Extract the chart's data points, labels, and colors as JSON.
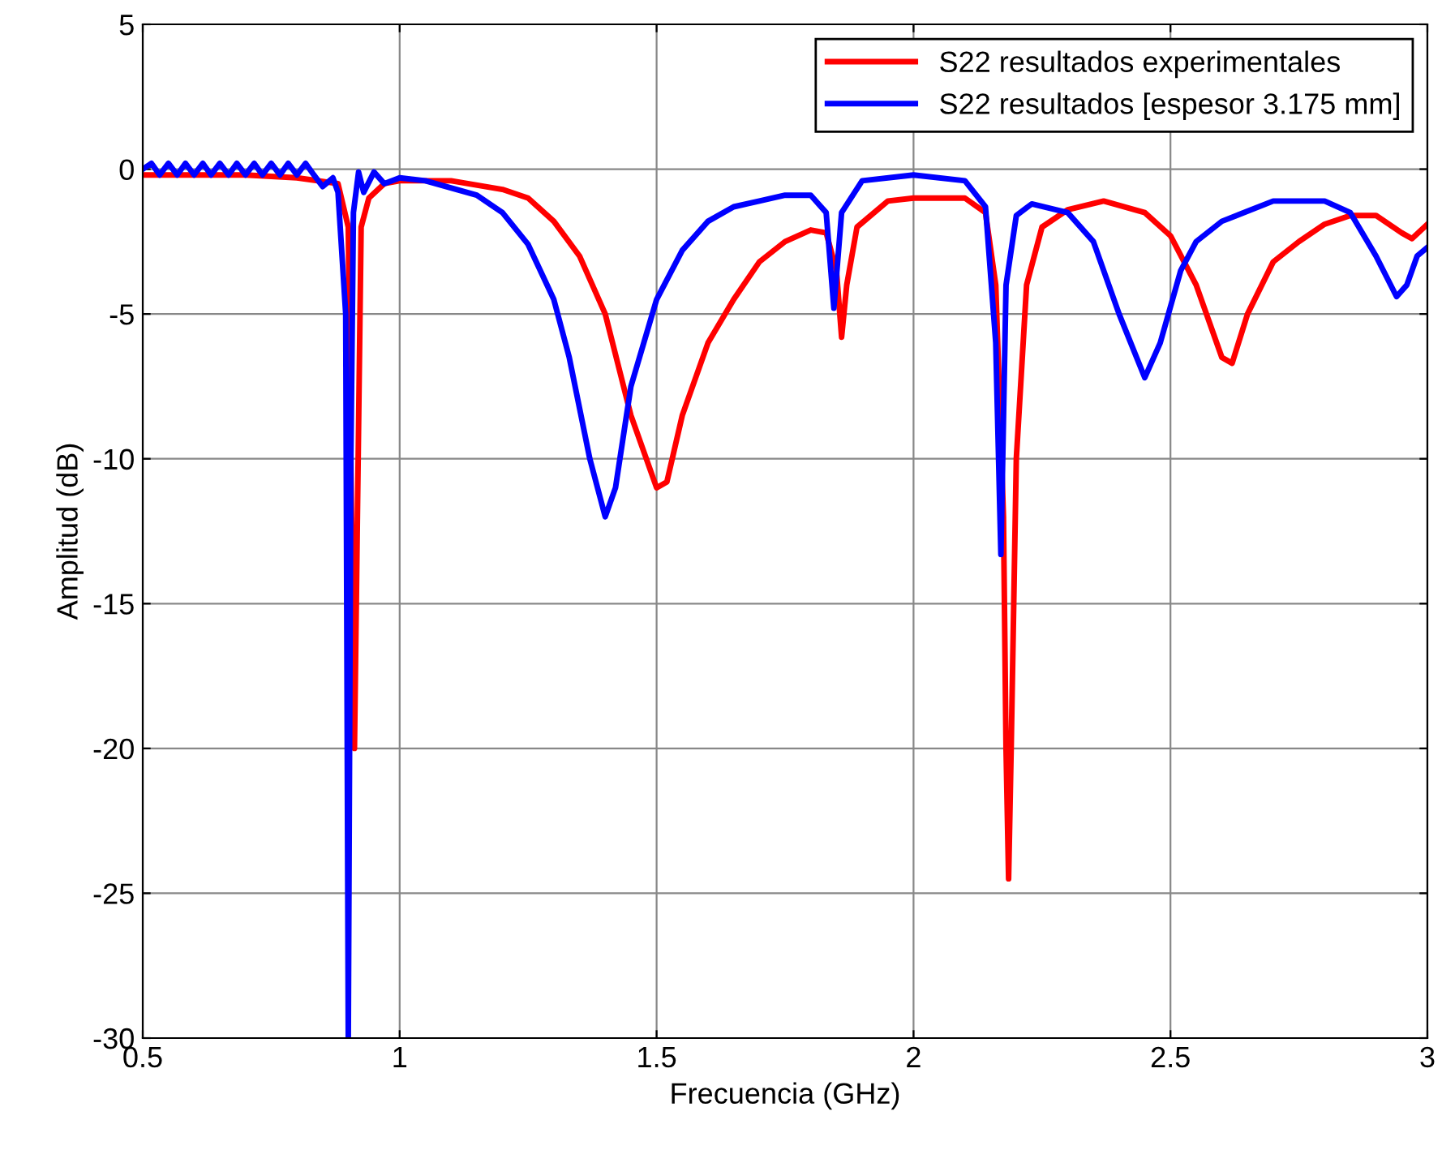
{
  "chart_data": {
    "type": "line",
    "xlabel": "Frecuencia (GHz)",
    "ylabel": "Amplitud (dB)",
    "xlim": [
      0.5,
      3
    ],
    "ylim": [
      -30,
      5
    ],
    "xticks": [
      0.5,
      1,
      1.5,
      2,
      2.5,
      3
    ],
    "yticks": [
      -30,
      -25,
      -20,
      -15,
      -10,
      -5,
      0,
      5
    ],
    "grid": true,
    "legend": "top right",
    "line_style": "solid",
    "marker": "none",
    "series": [
      {
        "name": "S22 resultados experimentales",
        "color": "#ff0000",
        "x": [
          0.5,
          0.7,
          0.8,
          0.88,
          0.9,
          0.905,
          0.912,
          0.925,
          0.94,
          0.97,
          1.0,
          1.1,
          1.2,
          1.25,
          1.3,
          1.35,
          1.4,
          1.45,
          1.5,
          1.52,
          1.55,
          1.6,
          1.65,
          1.7,
          1.75,
          1.8,
          1.83,
          1.85,
          1.86,
          1.87,
          1.89,
          1.95,
          2.0,
          2.1,
          2.14,
          2.16,
          2.175,
          2.18,
          2.185,
          2.19,
          2.2,
          2.22,
          2.25,
          2.3,
          2.37,
          2.45,
          2.5,
          2.55,
          2.6,
          2.62,
          2.65,
          2.7,
          2.75,
          2.8,
          2.85,
          2.9,
          2.95,
          2.97,
          3.0
        ],
        "values": [
          -0.2,
          -0.2,
          -0.3,
          -0.5,
          -2,
          -10,
          -20,
          -2,
          -1,
          -0.5,
          -0.4,
          -0.4,
          -0.7,
          -1.0,
          -1.8,
          -3.0,
          -5,
          -8.5,
          -11,
          -10.8,
          -8.5,
          -6,
          -4.5,
          -3.2,
          -2.5,
          -2.1,
          -2.2,
          -3.5,
          -5.8,
          -4,
          -2,
          -1.1,
          -1.0,
          -1.0,
          -1.5,
          -4,
          -12,
          -20,
          -24.5,
          -20,
          -10,
          -4,
          -2,
          -1.4,
          -1.1,
          -1.5,
          -2.3,
          -4,
          -6.5,
          -6.7,
          -5,
          -3.2,
          -2.5,
          -1.9,
          -1.6,
          -1.6,
          -2.2,
          -2.4,
          -1.9
        ]
      },
      {
        "name": "S22 resultados [espesor 3.175 mm]",
        "color": "#0000ff",
        "x": [
          0.5,
          0.517,
          0.533,
          0.55,
          0.567,
          0.583,
          0.6,
          0.617,
          0.633,
          0.65,
          0.667,
          0.683,
          0.7,
          0.717,
          0.733,
          0.75,
          0.767,
          0.783,
          0.8,
          0.817,
          0.833,
          0.85,
          0.87,
          0.88,
          0.895,
          0.9,
          0.905,
          0.91,
          0.92,
          0.93,
          0.95,
          0.97,
          1.0,
          1.05,
          1.15,
          1.2,
          1.25,
          1.3,
          1.33,
          1.37,
          1.4,
          1.42,
          1.45,
          1.5,
          1.55,
          1.6,
          1.65,
          1.7,
          1.75,
          1.8,
          1.83,
          1.845,
          1.86,
          1.9,
          2.0,
          2.1,
          2.14,
          2.16,
          2.17,
          2.18,
          2.2,
          2.23,
          2.3,
          2.35,
          2.4,
          2.45,
          2.48,
          2.52,
          2.55,
          2.6,
          2.7,
          2.8,
          2.85,
          2.9,
          2.94,
          2.96,
          2.98,
          3.0
        ],
        "values": [
          0,
          0.2,
          -0.2,
          0.2,
          -0.2,
          0.2,
          -0.2,
          0.2,
          -0.2,
          0.2,
          -0.2,
          0.2,
          -0.2,
          0.2,
          -0.2,
          0.2,
          -0.2,
          0.2,
          -0.2,
          0.2,
          -0.2,
          -0.6,
          -0.3,
          -0.8,
          -5,
          -30,
          -10,
          -1.5,
          -0.1,
          -0.8,
          -0.1,
          -0.5,
          -0.3,
          -0.4,
          -0.9,
          -1.5,
          -2.6,
          -4.5,
          -6.5,
          -10,
          -12,
          -11,
          -7.5,
          -4.5,
          -2.8,
          -1.8,
          -1.3,
          -1.1,
          -0.9,
          -0.9,
          -1.5,
          -4.8,
          -1.5,
          -0.4,
          -0.2,
          -0.4,
          -1.3,
          -6,
          -13.3,
          -4,
          -1.6,
          -1.2,
          -1.5,
          -2.5,
          -5,
          -7.2,
          -6,
          -3.5,
          -2.5,
          -1.8,
          -1.1,
          -1.1,
          -1.5,
          -3,
          -4.4,
          -4.0,
          -3,
          -2.7
        ]
      }
    ]
  }
}
